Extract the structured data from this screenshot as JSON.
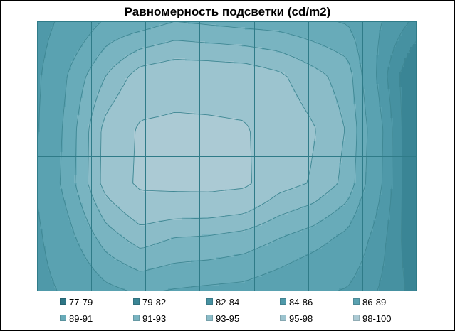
{
  "chart_data": {
    "type": "heatmap",
    "title": "Равномерность подсветки (cd/m2)",
    "xlabel": "",
    "ylabel": "",
    "grid": true,
    "legend_position": "bottom",
    "plot_style": "contour",
    "grid_columns": 7,
    "grid_rows": 4,
    "value_grid": [
      [
        84.8,
        87.1,
        89.3,
        89.9,
        91.0,
        90.6,
        90.2,
        90.0,
        89.4,
        88.8,
        86.0,
        83.5
      ],
      [
        85.5,
        89.5,
        93.0,
        96.0,
        96.7,
        96.6,
        96.4,
        95.4,
        93.7,
        92.0,
        84.8,
        79.3
      ],
      [
        85.8,
        90.2,
        95.8,
        98.4,
        98.6,
        98.5,
        98.3,
        96.6,
        95.2,
        92.8,
        86.2,
        78.9
      ],
      [
        86.2,
        90.4,
        95.9,
        98.6,
        98.9,
        99.0,
        98.6,
        95.9,
        94.8,
        92.3,
        86.0,
        79.1
      ],
      [
        85.5,
        88.6,
        92.0,
        94.0,
        93.0,
        92.8,
        92.2,
        91.1,
        90.0,
        88.4,
        84.6,
        79.9
      ],
      [
        85.0,
        86.7,
        88.4,
        89.3,
        88.8,
        88.5,
        88.3,
        87.5,
        86.4,
        85.8,
        83.7,
        81.2
      ]
    ],
    "color_bands": [
      {
        "label": "77-79",
        "color": "#2d7585"
      },
      {
        "label": "79-82",
        "color": "#3a8595"
      },
      {
        "label": "82-84",
        "color": "#4691a1"
      },
      {
        "label": "84-86",
        "color": "#4f99a9"
      },
      {
        "label": "86-89",
        "color": "#5aa2b1"
      },
      {
        "label": "89-91",
        "color": "#68abb9"
      },
      {
        "label": "91-93",
        "color": "#79b4c1"
      },
      {
        "label": "93-95",
        "color": "#8bbcc8"
      },
      {
        "label": "95-98",
        "color": "#9cc4cf"
      },
      {
        "label": "98-100",
        "color": "#abcad4"
      }
    ]
  }
}
